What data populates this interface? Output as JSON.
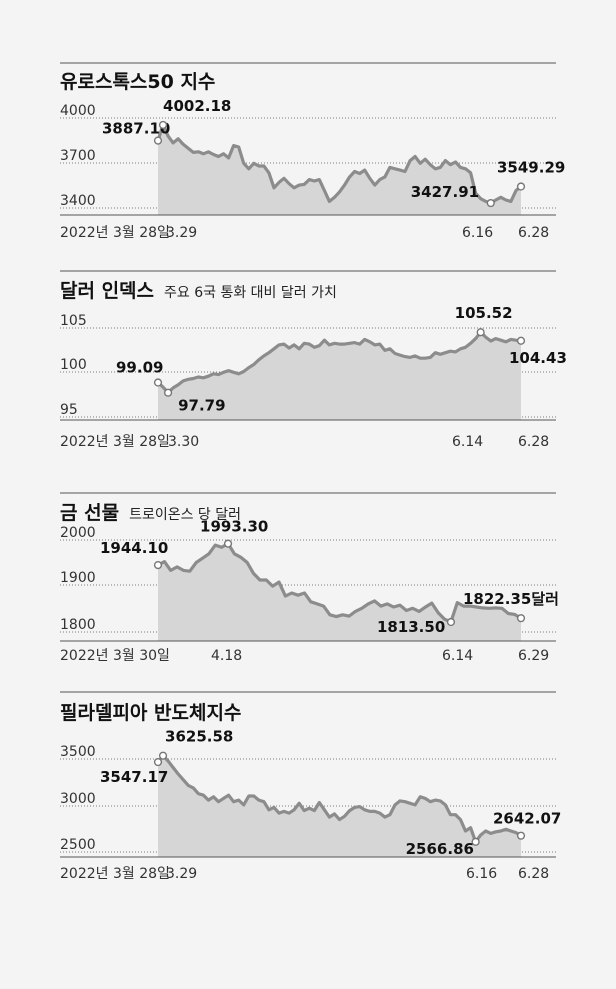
{
  "chart_data": [
    {
      "type": "area",
      "title": "유로스톡스50 지수",
      "subtitle": "",
      "yticks": [
        3400,
        3700,
        4000
      ],
      "ylim": [
        3340,
        4090
      ],
      "x_labels": [
        "2022년 3월 28일",
        "3.29",
        "6.16",
        "6.28"
      ],
      "values": [
        3887.1,
        4002.18,
        3920,
        3870,
        3900,
        3860,
        3830,
        3800,
        3805,
        3790,
        3805,
        3785,
        3770,
        3790,
        3760,
        3850,
        3840,
        3720,
        3680,
        3720,
        3700,
        3700,
        3650,
        3540,
        3580,
        3610,
        3570,
        3540,
        3560,
        3565,
        3600,
        3590,
        3600,
        3520,
        3440,
        3470,
        3510,
        3560,
        3620,
        3660,
        3645,
        3670,
        3610,
        3560,
        3600,
        3620,
        3690,
        3680,
        3670,
        3660,
        3740,
        3770,
        3720,
        3750,
        3710,
        3680,
        3690,
        3740,
        3710,
        3730,
        3690,
        3680,
        3650,
        3500,
        3460,
        3440,
        3427.91,
        3450,
        3470,
        3450,
        3440,
        3520,
        3549.29
      ],
      "callouts": [
        {
          "index": 0,
          "value": 3887.1,
          "label": "3887.10"
        },
        {
          "index": 1,
          "value": 4002.18,
          "label": "4002.18"
        },
        {
          "index": 66,
          "value": 3427.91,
          "label": "3427.91"
        },
        {
          "index": 72,
          "value": 3549.29,
          "label": "3549.29"
        }
      ]
    },
    {
      "type": "area",
      "title": "달러 인덱스",
      "subtitle": "주요 6국 통화 대비 달러 가치",
      "yticks": [
        95,
        100,
        105
      ],
      "ylim": [
        94.3,
        106.7
      ],
      "x_labels": [
        "2022년 3월 28일",
        "3.30",
        "6.14",
        "6.28"
      ],
      "values": [
        99.09,
        98.5,
        97.79,
        98.4,
        98.8,
        99.3,
        99.5,
        99.6,
        99.8,
        99.7,
        99.9,
        100.2,
        100.1,
        100.4,
        100.6,
        100.4,
        100.2,
        100.5,
        101.0,
        101.4,
        102.0,
        102.5,
        102.9,
        103.4,
        103.9,
        104.0,
        103.5,
        103.9,
        103.4,
        104.1,
        104.0,
        103.6,
        103.8,
        104.5,
        103.9,
        104.1,
        104.0,
        104.0,
        104.1,
        104.2,
        104.0,
        104.6,
        104.3,
        103.9,
        104.0,
        103.2,
        103.4,
        102.8,
        102.6,
        102.4,
        102.3,
        102.5,
        102.2,
        102.2,
        102.3,
        102.9,
        102.7,
        102.9,
        103.1,
        103.0,
        103.4,
        103.6,
        104.1,
        104.7,
        105.52,
        104.9,
        104.4,
        104.7,
        104.5,
        104.3,
        104.6,
        104.5,
        104.43
      ],
      "callouts": [
        {
          "index": 0,
          "value": 99.09,
          "label": "99.09"
        },
        {
          "index": 2,
          "value": 97.79,
          "label": "97.79"
        },
        {
          "index": 64,
          "value": 105.52,
          "label": "105.52"
        },
        {
          "index": 72,
          "value": 104.43,
          "label": "104.43"
        }
      ]
    },
    {
      "type": "area",
      "title": "금 선물",
      "subtitle": "트로이온스 당 달러",
      "yticks": [
        1800,
        1900,
        2000
      ],
      "ylim": [
        1770,
        2020
      ],
      "x_labels": [
        "2022년 3월 30일",
        "4.18",
        "6.14",
        "6.29"
      ],
      "values": [
        1944.1,
        1952,
        1932,
        1940,
        1932,
        1930,
        1950,
        1960,
        1970,
        1990,
        1985,
        1993.3,
        1970,
        1962,
        1950,
        1925,
        1910,
        1910,
        1896,
        1905,
        1873,
        1880,
        1875,
        1880,
        1860,
        1855,
        1850,
        1830,
        1826,
        1830,
        1827,
        1838,
        1845,
        1855,
        1862,
        1850,
        1855,
        1848,
        1852,
        1840,
        1845,
        1838,
        1848,
        1857,
        1835,
        1820,
        1813.5,
        1858,
        1850,
        1850,
        1848,
        1846,
        1845,
        1846,
        1845,
        1833,
        1831,
        1822.35
      ],
      "callouts": [
        {
          "index": 0,
          "value": 1944.1,
          "label": "1944.10"
        },
        {
          "index": 11,
          "value": 1993.3,
          "label": "1993.30"
        },
        {
          "index": 46,
          "value": 1813.5,
          "label": "1813.50"
        },
        {
          "index": 57,
          "value": 1822.35,
          "label": "1822.35달러"
        }
      ]
    },
    {
      "type": "area",
      "title": "필라델피아 반도체지수",
      "subtitle": "",
      "yticks": [
        2500,
        3000,
        3500
      ],
      "ylim": [
        2380,
        3720
      ],
      "x_labels": [
        "2022년 3월 28일",
        "3.29",
        "6.16",
        "6.28"
      ],
      "values": [
        3547.17,
        3625.58,
        3560,
        3480,
        3400,
        3330,
        3260,
        3230,
        3160,
        3140,
        3080,
        3120,
        3060,
        3100,
        3140,
        3060,
        3080,
        3020,
        3130,
        3130,
        3080,
        3060,
        2960,
        2990,
        2920,
        2940,
        2920,
        2960,
        3040,
        2950,
        2980,
        2950,
        3050,
        2960,
        2870,
        2910,
        2840,
        2880,
        2950,
        2990,
        3000,
        2960,
        2940,
        2940,
        2920,
        2870,
        2900,
        3020,
        3070,
        3060,
        3040,
        3020,
        3120,
        3100,
        3060,
        3080,
        3070,
        3020,
        2900,
        2900,
        2840,
        2700,
        2740,
        2566.86,
        2650,
        2700,
        2670,
        2690,
        2700,
        2720,
        2700,
        2680,
        2642.07
      ],
      "callouts": [
        {
          "index": 0,
          "value": 3547.17,
          "label": "3547.17"
        },
        {
          "index": 1,
          "value": 3625.58,
          "label": "3625.58"
        },
        {
          "index": 63,
          "value": 2566.86,
          "label": "2566.86"
        },
        {
          "index": 72,
          "value": 2642.07,
          "label": "2642.07"
        }
      ]
    }
  ]
}
